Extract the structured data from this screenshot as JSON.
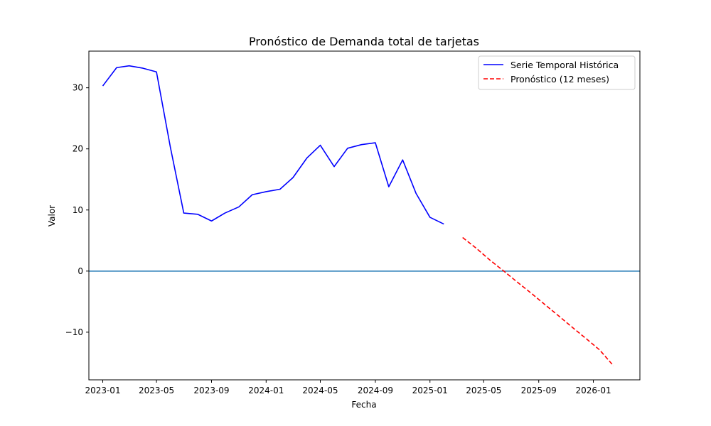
{
  "chart_data": {
    "type": "line",
    "title": "Pronóstico de Demanda total de tarjetas",
    "xlabel": "Fecha",
    "ylabel": "Valor",
    "xlim": [
      "2022-12-01",
      "2026-04-15"
    ],
    "ylim": [
      -17.8,
      36
    ],
    "x_ticks": [
      "2023-01",
      "2023-05",
      "2023-09",
      "2024-01",
      "2024-05",
      "2024-09",
      "2025-01",
      "2025-05",
      "2025-09",
      "2026-01"
    ],
    "y_ticks": [
      30,
      20,
      10,
      0,
      -10
    ],
    "y_tick_labels": [
      "30",
      "20",
      "10",
      "0",
      "−10"
    ],
    "grid": false,
    "legend_position": "top-right",
    "reference_line": {
      "y": 0,
      "color": "#1f77b4"
    },
    "series": [
      {
        "name": "Serie Temporal Histórica",
        "color": "#0000ff",
        "style": "solid",
        "points": [
          {
            "x": "2023-01-01",
            "y": 30.3
          },
          {
            "x": "2023-02-01",
            "y": 33.3
          },
          {
            "x": "2023-03-01",
            "y": 33.6
          },
          {
            "x": "2023-04-01",
            "y": 33.2
          },
          {
            "x": "2023-05-01",
            "y": 32.6
          },
          {
            "x": "2023-06-01",
            "y": 20.3
          },
          {
            "x": "2023-07-01",
            "y": 9.5
          },
          {
            "x": "2023-08-01",
            "y": 9.3
          },
          {
            "x": "2023-09-01",
            "y": 8.2
          },
          {
            "x": "2023-10-01",
            "y": 9.5
          },
          {
            "x": "2023-11-01",
            "y": 10.5
          },
          {
            "x": "2023-12-01",
            "y": 12.5
          },
          {
            "x": "2024-01-01",
            "y": 13.0
          },
          {
            "x": "2024-02-01",
            "y": 13.4
          },
          {
            "x": "2024-03-01",
            "y": 15.3
          },
          {
            "x": "2024-04-01",
            "y": 18.5
          },
          {
            "x": "2024-05-01",
            "y": 20.6
          },
          {
            "x": "2024-06-01",
            "y": 17.1
          },
          {
            "x": "2024-07-01",
            "y": 20.1
          },
          {
            "x": "2024-08-01",
            "y": 20.7
          },
          {
            "x": "2024-09-01",
            "y": 21.0
          },
          {
            "x": "2024-10-01",
            "y": 13.8
          },
          {
            "x": "2024-11-01",
            "y": 18.2
          },
          {
            "x": "2024-12-01",
            "y": 12.7
          },
          {
            "x": "2025-01-01",
            "y": 8.8
          },
          {
            "x": "2025-02-01",
            "y": 7.7
          }
        ]
      },
      {
        "name": "Pronóstico (12 meses)",
        "color": "#ff0000",
        "style": "dashed",
        "points": [
          {
            "x": "2025-03-15",
            "y": 5.5
          },
          {
            "x": "2025-04-15",
            "y": 3.7
          },
          {
            "x": "2025-05-15",
            "y": 1.8
          },
          {
            "x": "2025-06-15",
            "y": 0.0
          },
          {
            "x": "2025-07-15",
            "y": -1.8
          },
          {
            "x": "2025-08-15",
            "y": -3.6
          },
          {
            "x": "2025-09-15",
            "y": -5.5
          },
          {
            "x": "2025-10-15",
            "y": -7.3
          },
          {
            "x": "2025-11-15",
            "y": -9.2
          },
          {
            "x": "2025-12-15",
            "y": -11.0
          },
          {
            "x": "2026-01-15",
            "y": -12.9
          },
          {
            "x": "2026-02-15",
            "y": -15.5
          }
        ]
      }
    ]
  }
}
